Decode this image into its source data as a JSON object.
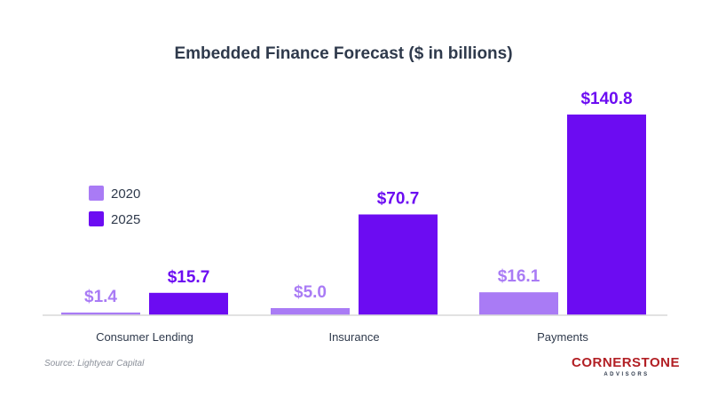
{
  "chart_data": {
    "type": "bar",
    "title": "Embedded Finance Forecast ($ in billions)",
    "categories": [
      "Consumer Lending",
      "Insurance",
      "Payments"
    ],
    "series": [
      {
        "name": "2020",
        "values": [
          1.4,
          5.0,
          16.1
        ],
        "labels": [
          "$1.4",
          "$5.0",
          "$16.1"
        ],
        "color": "#a97bf5"
      },
      {
        "name": "2025",
        "values": [
          15.7,
          70.7,
          140.8
        ],
        "labels": [
          "$15.7",
          "$70.7",
          "$140.8"
        ],
        "color": "#6c0cf2"
      }
    ],
    "xlabel": "",
    "ylabel": "",
    "ylim": [
      0,
      140.8
    ],
    "grid": false,
    "legend": "left",
    "axis_color": "#d9d9d9"
  },
  "source": "Source: Lightyear Capital",
  "logo": {
    "name": "CORNERSTONE",
    "tagline": "ADVISORS",
    "color": "#b21f24"
  }
}
